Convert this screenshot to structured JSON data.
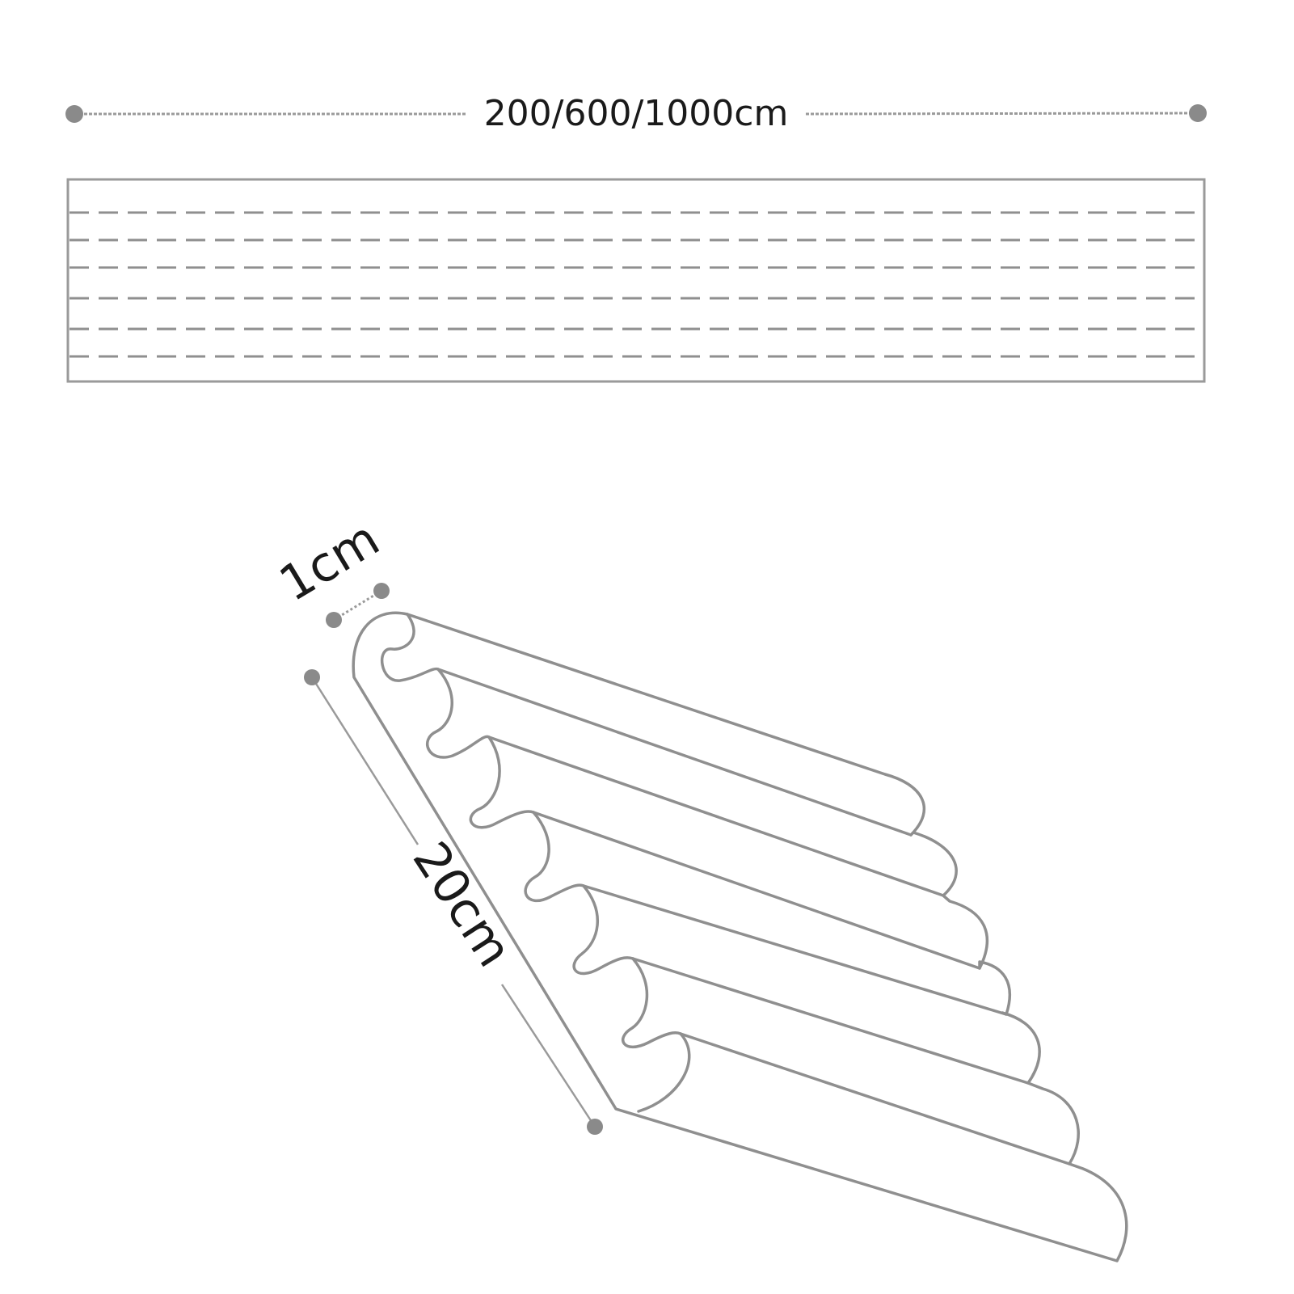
{
  "diagram": {
    "length_label": "200/600/1000cm",
    "thickness_label": "1cm",
    "width_label": "20cm",
    "panel_stripe_count": 6,
    "wave_count": 7,
    "colors": {
      "line": "#8f8f8f",
      "dot": "#8a8a8a",
      "text": "#1a1a1a",
      "background": "#ffffff"
    }
  }
}
